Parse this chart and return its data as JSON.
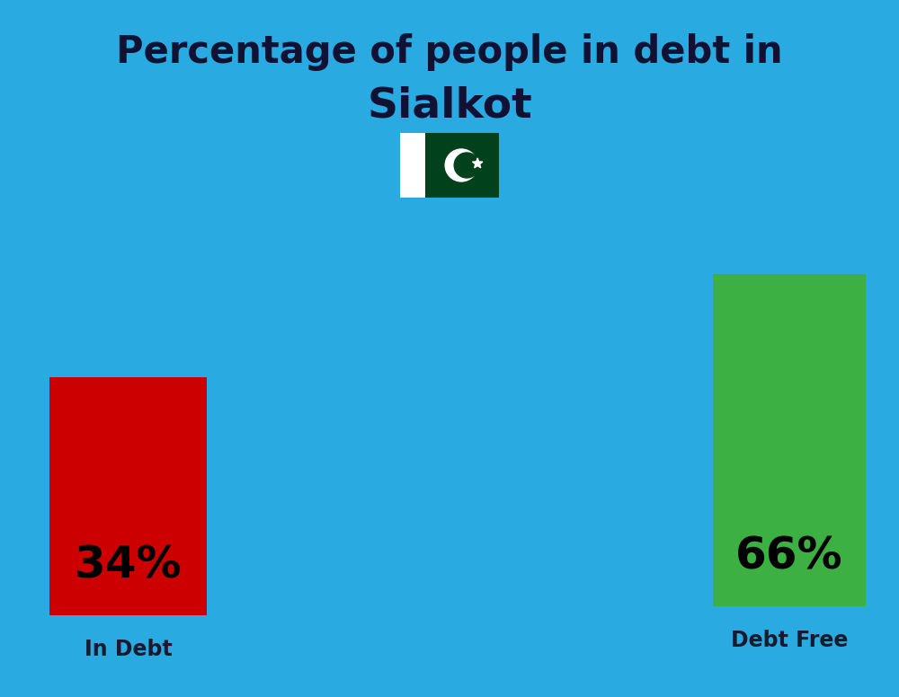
{
  "title_line1": "Percentage of people in debt in",
  "title_line2": "Sialkot",
  "background_color": "#29ABE2",
  "bar1_label": "34%",
  "bar1_color": "#CC0000",
  "bar1_category": "In Debt",
  "bar2_label": "66%",
  "bar2_color": "#3CB043",
  "bar2_category": "Debt Free",
  "label_color": "#1a1a2e",
  "title_color": "#111133",
  "pct_fontsize": 36,
  "cat_fontsize": 17,
  "title_fontsize1": 30,
  "title_fontsize2": 34,
  "flag_white": "#FFFFFF",
  "flag_green": "#01411C",
  "flag_crescent": "#FFFFFF"
}
